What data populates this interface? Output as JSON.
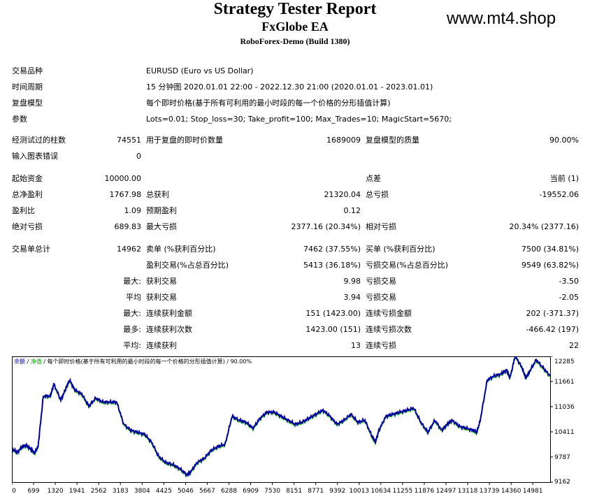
{
  "header": {
    "title": "Strategy Tester Report",
    "ea": "FxGlobe EA",
    "server": "RoboForex-Demo (Build 1380)",
    "watermark": "www.mt4.shop"
  },
  "info": {
    "symbol_label": "交易品种",
    "symbol_value": "EURUSD (Euro vs US Dollar)",
    "period_label": "时间周期",
    "period_value": "15 分钟图 2020.01.01 22:00 - 2022.12.30 21:00 (2020.01.01 - 2023.01.01)",
    "model_label": "复盘模型",
    "model_value": "每个即时价格(基于所有可利用的最小时段的每一个价格的分形插值计算)",
    "params_label": "参数",
    "params_value": "Lots=0.01; Stop_loss=30; Take_profit=100; Max_Trades=10; MagicStart=5670;"
  },
  "stats": {
    "bars_label": "经测试过的柱数",
    "bars_value": "74551",
    "ticks_label": "用于复盘的即时价数量",
    "ticks_value": "1689009",
    "quality_label": "复盘模型的质量",
    "quality_value": "90.00%",
    "errors_label": "输入图表错误",
    "errors_value": "0",
    "deposit_label": "起始资金",
    "deposit_value": "10000.00",
    "spread_label": "点差",
    "spread_value": "当前 (1)",
    "net_label": "总净盈利",
    "net_value": "1767.98",
    "gross_profit_label": "总获利",
    "gross_profit_value": "21320.04",
    "gross_loss_label": "总亏损",
    "gross_loss_value": "-19552.06",
    "pf_label": "盈利比",
    "pf_value": "1.09",
    "payoff_label": "预期盈利",
    "payoff_value": "0.12",
    "abs_dd_label": "绝对亏损",
    "abs_dd_value": "689.83",
    "max_dd_label": "最大亏损",
    "max_dd_value": "2377.16 (20.34%)",
    "rel_dd_label": "相对亏损",
    "rel_dd_value": "20.34% (2377.16)",
    "trades_label": "交易单总计",
    "trades_value": "14962",
    "short_label": "卖单 (%获利百分比)",
    "short_value": "7462 (37.55%)",
    "long_label": "买单 (%获利百分比)",
    "long_value": "7500 (34.81%)",
    "win_label": "盈利交易(%占总百分比)",
    "win_value": "5413 (36.18%)",
    "loss_label": "亏损交易(%占总百分比)",
    "loss_value": "9549 (63.82%)",
    "largest_prefix": "最大:",
    "largest_win_label": "获利交易",
    "largest_win_value": "9.98",
    "largest_loss_label": "亏损交易",
    "largest_loss_value": "-3.50",
    "average_prefix": "平均",
    "avg_win_label": "获利交易",
    "avg_win_value": "3.94",
    "avg_loss_label": "亏损交易",
    "avg_loss_value": "-2.05",
    "max_prefix": "最大:",
    "max_cons_win_label": "连续获利金额",
    "max_cons_win_value": "151 (1423.00)",
    "max_cons_loss_label": "连续亏损金额",
    "max_cons_loss_value": "202 (-371.37)",
    "most_prefix": "最多:",
    "most_cons_win_label": "连续获利次数",
    "most_cons_win_value": "1423.00 (151)",
    "most_cons_loss_label": "连续亏损次数",
    "most_cons_loss_value": "-466.42 (197)",
    "avgc_prefix": "平均:",
    "avg_cons_win_label": "连续获利",
    "avg_cons_win_value": "13",
    "avg_cons_loss_label": "连续亏损",
    "avg_cons_loss_value": "22"
  },
  "chart_data": {
    "type": "line",
    "legend": {
      "balance": "余额",
      "sep1": " / ",
      "equity": "净值",
      "rest": " / 每个即时价格(基于所有可利用的最小时段的每一个价格的分形插值计算) / 90.00%"
    },
    "x_ticks": [
      "0",
      "699",
      "1320",
      "1941",
      "2562",
      "3183",
      "3804",
      "4425",
      "5046",
      "5667",
      "6288",
      "6909",
      "7530",
      "8151",
      "8771",
      "9392",
      "10013",
      "10634",
      "11255",
      "11876",
      "12497",
      "13118",
      "13739",
      "14360",
      "14981"
    ],
    "y_ticks": [
      "12285",
      "11661",
      "11036",
      "10411",
      "9787",
      "9162"
    ],
    "ylim": [
      9162,
      12285
    ],
    "xlim": [
      0,
      15400
    ],
    "x": [
      0,
      150,
      300,
      400,
      550,
      650,
      749,
      900,
      1100,
      1200,
      1400,
      1550,
      1650,
      1800,
      2000,
      2200,
      2400,
      2600,
      2800,
      3000,
      3200,
      3400,
      3600,
      3800,
      4000,
      4200,
      4400,
      4600,
      4800,
      5000,
      5100,
      5300,
      5500,
      5700,
      5900,
      6100,
      6300,
      6500,
      6700,
      6900,
      7100,
      7300,
      7500,
      7700,
      7900,
      8100,
      8300,
      8500,
      8700,
      8900,
      9100,
      9300,
      9500,
      9700,
      9900,
      10100,
      10300,
      10400,
      10500,
      10700,
      10900,
      11100,
      11300,
      11500,
      11700,
      11900,
      12100,
      12300,
      12450,
      12600,
      12800,
      13000,
      13200,
      13300,
      13400,
      13600,
      13800,
      14000,
      14150,
      14250,
      14400,
      14600,
      14700,
      14800,
      15000,
      15200,
      15400
    ],
    "balance": [
      10000,
      9900,
      10050,
      10080,
      9980,
      9880,
      10050,
      11300,
      11300,
      11600,
      11200,
      11500,
      11700,
      11450,
      11350,
      11050,
      11250,
      11150,
      11150,
      11150,
      10600,
      10450,
      10400,
      10350,
      10150,
      9800,
      9650,
      9600,
      9500,
      9350,
      9400,
      9650,
      9750,
      9950,
      10050,
      10100,
      10800,
      10700,
      10650,
      10500,
      10750,
      10900,
      10900,
      10800,
      10700,
      10600,
      10650,
      10750,
      10850,
      10950,
      10800,
      10600,
      10700,
      10850,
      10650,
      10700,
      10300,
      10150,
      10450,
      10800,
      10850,
      10900,
      10950,
      11000,
      10650,
      10400,
      10700,
      10450,
      10600,
      10700,
      10550,
      10500,
      10450,
      10400,
      10700,
      11700,
      11800,
      11850,
      11950,
      11750,
      12300,
      12000,
      11750,
      11900,
      12200,
      12000,
      11800
    ]
  }
}
